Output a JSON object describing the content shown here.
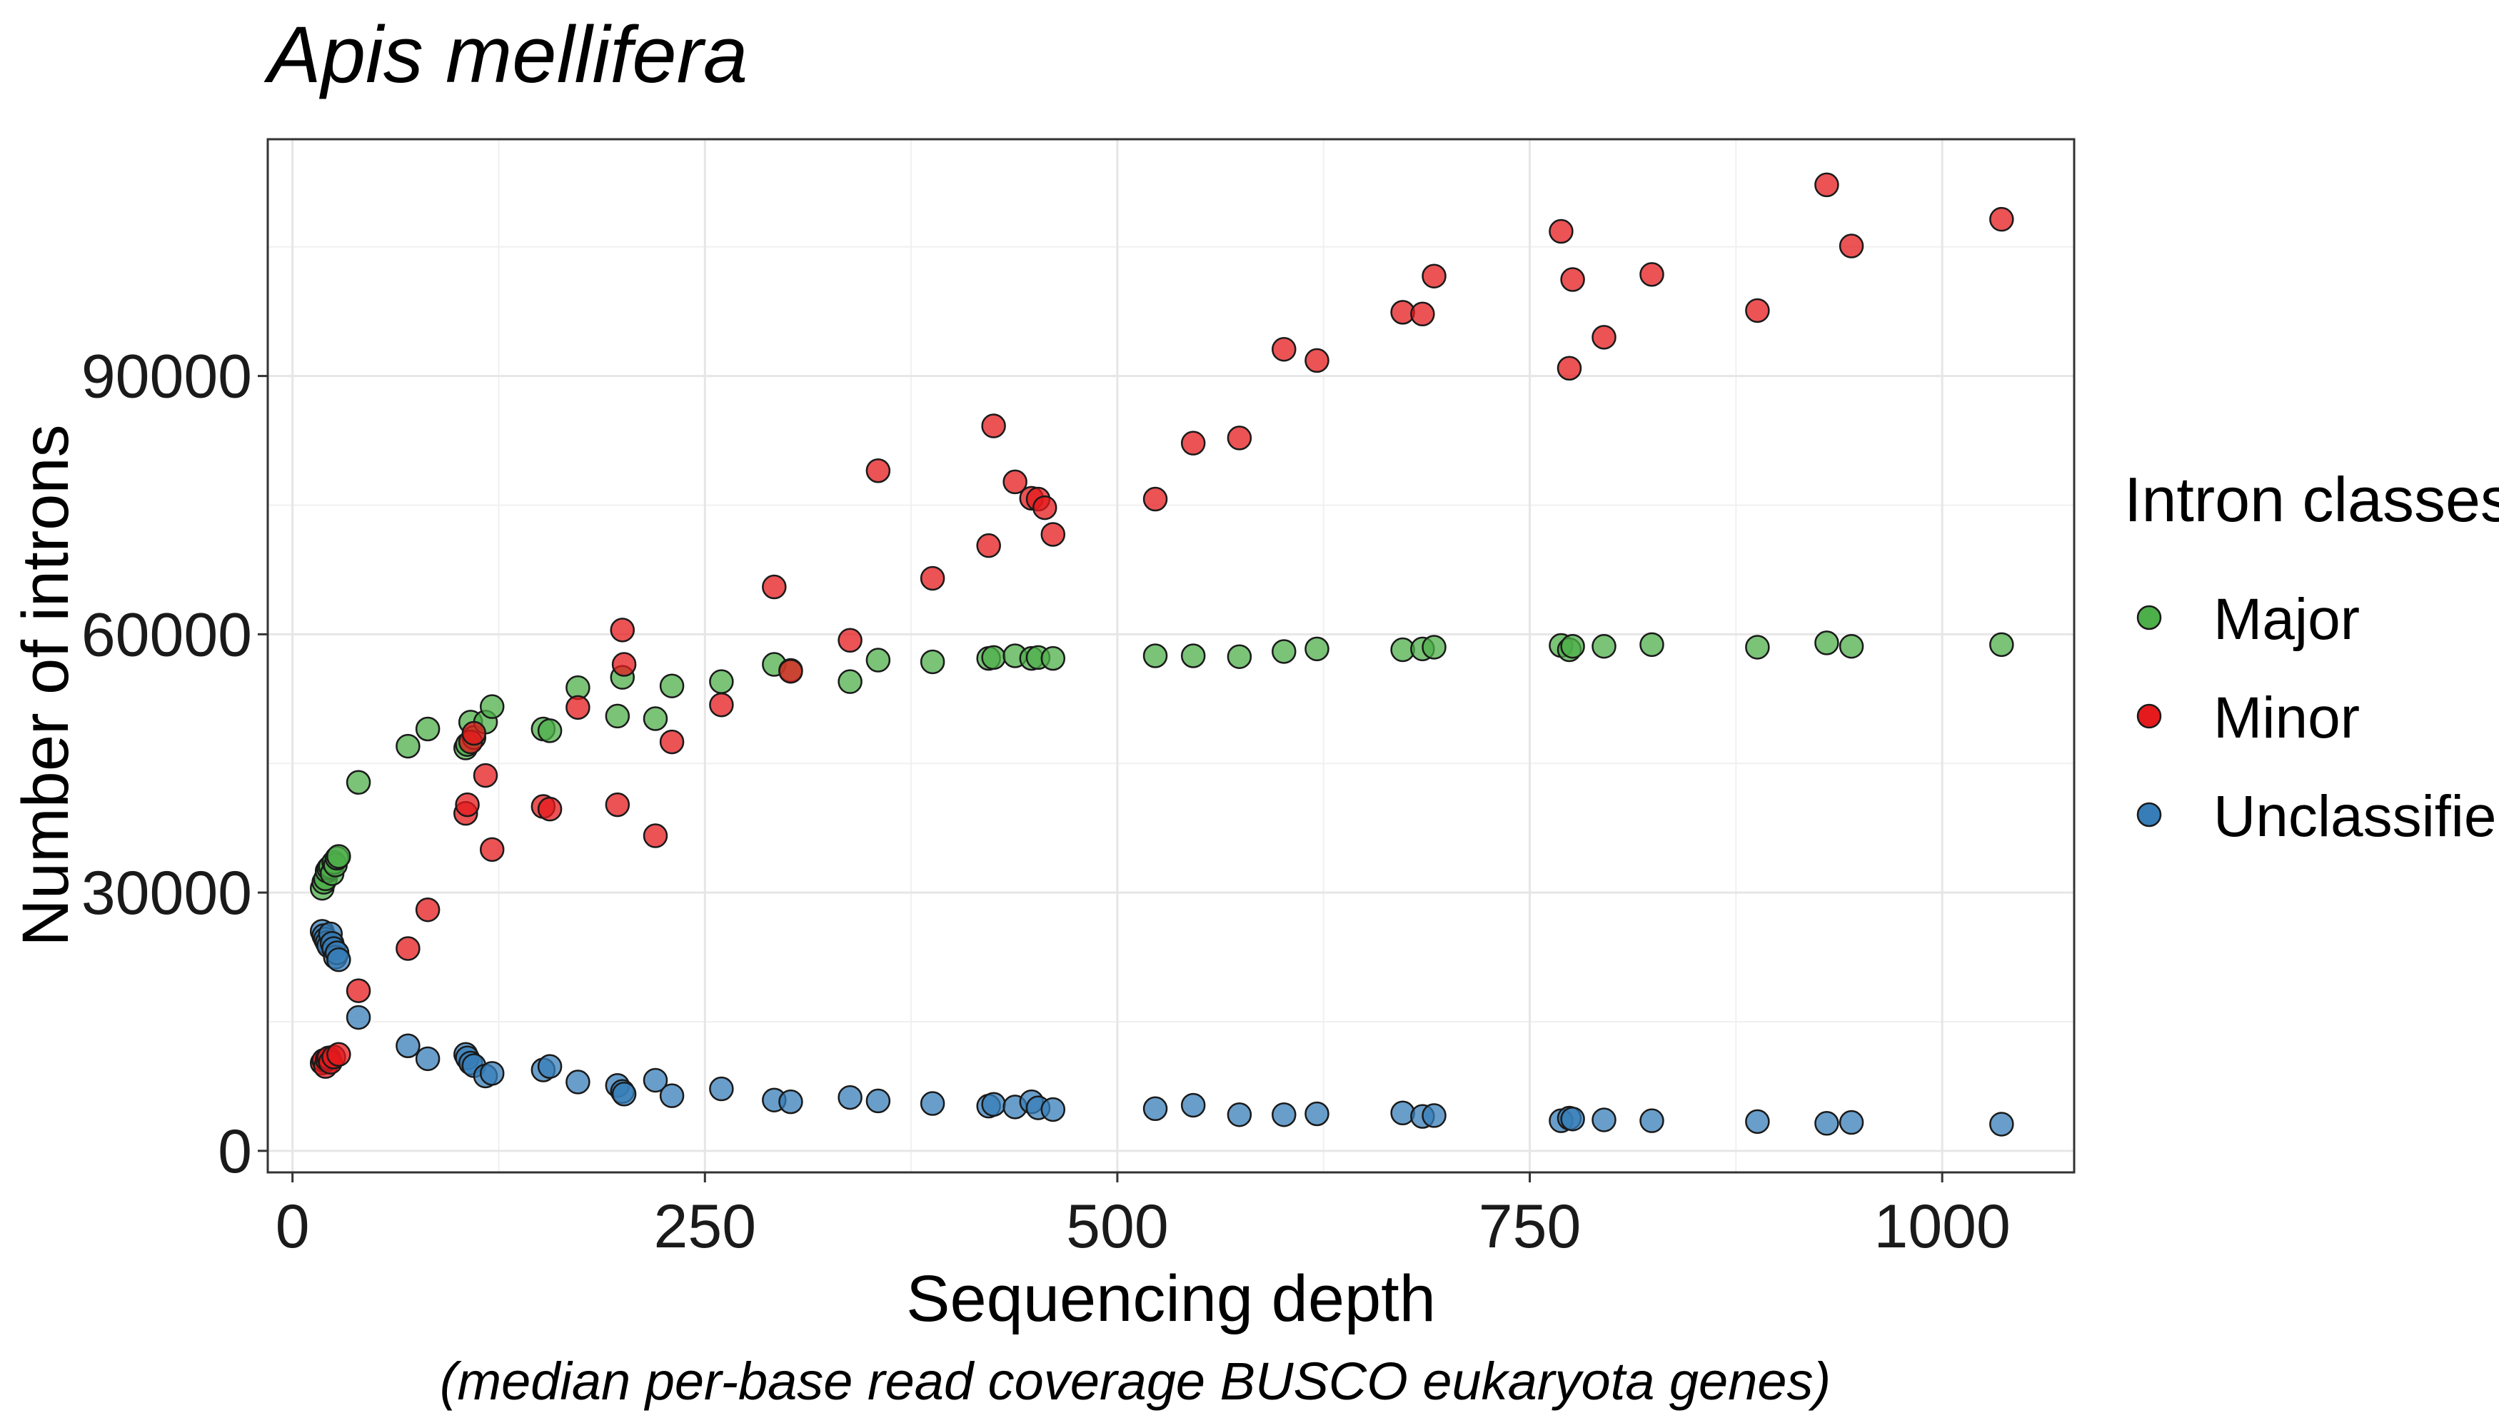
{
  "chart_data": {
    "type": "scatter",
    "title": "Apis mellifera",
    "xlabel": "Sequencing depth",
    "xlabel_note": "(median per-base read coverage BUSCO eukaryota genes)",
    "ylabel": "Number of introns",
    "xlim": [
      -15,
      1080
    ],
    "ylim": [
      -2500,
      117500
    ],
    "x_ticks": [
      0,
      250,
      500,
      750,
      1000
    ],
    "y_ticks": [
      0,
      30000,
      60000,
      90000
    ],
    "grid": true,
    "legend": {
      "title": "Intron classes",
      "position": "right"
    },
    "series": [
      {
        "name": "Major",
        "color": "#4DAF4A",
        "points": [
          [
            18,
            30500
          ],
          [
            19,
            31200
          ],
          [
            20,
            31600
          ],
          [
            21,
            32500
          ],
          [
            22,
            32800
          ],
          [
            23,
            33000
          ],
          [
            24,
            32200
          ],
          [
            25,
            33500
          ],
          [
            26,
            33200
          ],
          [
            27,
            34000
          ],
          [
            28,
            34200
          ],
          [
            40,
            42800
          ],
          [
            70,
            47000
          ],
          [
            82,
            49000
          ],
          [
            105,
            46800
          ],
          [
            106,
            47200
          ],
          [
            108,
            49800
          ],
          [
            110,
            48000
          ],
          [
            117,
            49800
          ],
          [
            121,
            51600
          ],
          [
            152,
            49000
          ],
          [
            156,
            48800
          ],
          [
            173,
            53800
          ],
          [
            197,
            50500
          ],
          [
            200,
            55000
          ],
          [
            220,
            50200
          ],
          [
            230,
            54000
          ],
          [
            260,
            54500
          ],
          [
            292,
            56500
          ],
          [
            302,
            55800
          ],
          [
            338,
            54500
          ],
          [
            355,
            57000
          ],
          [
            388,
            56800
          ],
          [
            422,
            57200
          ],
          [
            425,
            57300
          ],
          [
            438,
            57500
          ],
          [
            448,
            57200
          ],
          [
            452,
            57300
          ],
          [
            461,
            57200
          ],
          [
            523,
            57500
          ],
          [
            546,
            57500
          ],
          [
            574,
            57400
          ],
          [
            601,
            58000
          ],
          [
            621,
            58300
          ],
          [
            673,
            58200
          ],
          [
            685,
            58300
          ],
          [
            692,
            58500
          ],
          [
            769,
            58700
          ],
          [
            774,
            58200
          ],
          [
            776,
            58600
          ],
          [
            795,
            58600
          ],
          [
            824,
            58800
          ],
          [
            888,
            58500
          ],
          [
            930,
            59000
          ],
          [
            945,
            58600
          ],
          [
            1036,
            58800
          ]
        ]
      },
      {
        "name": "Minor",
        "color": "#E41A1C",
        "points": [
          [
            18,
            10200
          ],
          [
            19,
            10500
          ],
          [
            20,
            9800
          ],
          [
            21,
            10600
          ],
          [
            22,
            10800
          ],
          [
            23,
            10300
          ],
          [
            25,
            10900
          ],
          [
            28,
            11200
          ],
          [
            40,
            18600
          ],
          [
            70,
            23500
          ],
          [
            82,
            28000
          ],
          [
            105,
            39200
          ],
          [
            106,
            40200
          ],
          [
            108,
            47500
          ],
          [
            110,
            48500
          ],
          [
            117,
            43600
          ],
          [
            121,
            35000
          ],
          [
            152,
            40000
          ],
          [
            156,
            39700
          ],
          [
            173,
            51500
          ],
          [
            197,
            40200
          ],
          [
            200,
            60500
          ],
          [
            201,
            56500
          ],
          [
            220,
            36600
          ],
          [
            230,
            47500
          ],
          [
            260,
            51800
          ],
          [
            292,
            65500
          ],
          [
            302,
            55700
          ],
          [
            338,
            59300
          ],
          [
            355,
            79000
          ],
          [
            388,
            66500
          ],
          [
            422,
            70300
          ],
          [
            425,
            84200
          ],
          [
            438,
            77700
          ],
          [
            448,
            75800
          ],
          [
            452,
            75700
          ],
          [
            456,
            74700
          ],
          [
            461,
            71600
          ],
          [
            523,
            75700
          ],
          [
            546,
            82200
          ],
          [
            574,
            82800
          ],
          [
            601,
            93100
          ],
          [
            621,
            91800
          ],
          [
            673,
            97400
          ],
          [
            685,
            97200
          ],
          [
            692,
            101600
          ],
          [
            769,
            106800
          ],
          [
            774,
            90900
          ],
          [
            776,
            101200
          ],
          [
            795,
            94500
          ],
          [
            824,
            101800
          ],
          [
            888,
            97600
          ],
          [
            930,
            112200
          ],
          [
            945,
            105100
          ],
          [
            1036,
            108200
          ]
        ]
      },
      {
        "name": "Unclassified",
        "color": "#377EB8",
        "points": [
          [
            18,
            25500
          ],
          [
            19,
            25000
          ],
          [
            20,
            24600
          ],
          [
            21,
            24200
          ],
          [
            22,
            23800
          ],
          [
            23,
            25200
          ],
          [
            24,
            24100
          ],
          [
            25,
            23500
          ],
          [
            26,
            22500
          ],
          [
            27,
            23000
          ],
          [
            28,
            22200
          ],
          [
            40,
            15500
          ],
          [
            70,
            12200
          ],
          [
            82,
            10700
          ],
          [
            105,
            11200
          ],
          [
            106,
            10800
          ],
          [
            108,
            10200
          ],
          [
            110,
            9900
          ],
          [
            117,
            8700
          ],
          [
            121,
            9000
          ],
          [
            152,
            9400
          ],
          [
            156,
            9800
          ],
          [
            173,
            8000
          ],
          [
            197,
            7600
          ],
          [
            200,
            6900
          ],
          [
            201,
            6600
          ],
          [
            220,
            8200
          ],
          [
            230,
            6400
          ],
          [
            260,
            7200
          ],
          [
            292,
            5900
          ],
          [
            302,
            5700
          ],
          [
            338,
            6200
          ],
          [
            355,
            5800
          ],
          [
            388,
            5500
          ],
          [
            422,
            5200
          ],
          [
            425,
            5400
          ],
          [
            438,
            5100
          ],
          [
            448,
            5700
          ],
          [
            452,
            5000
          ],
          [
            461,
            4800
          ],
          [
            523,
            4900
          ],
          [
            546,
            5300
          ],
          [
            574,
            4200
          ],
          [
            601,
            4200
          ],
          [
            621,
            4300
          ],
          [
            673,
            4400
          ],
          [
            685,
            4000
          ],
          [
            692,
            4100
          ],
          [
            769,
            3500
          ],
          [
            774,
            3800
          ],
          [
            776,
            3700
          ],
          [
            795,
            3600
          ],
          [
            824,
            3500
          ],
          [
            888,
            3400
          ],
          [
            930,
            3200
          ],
          [
            945,
            3300
          ],
          [
            1036,
            3100
          ]
        ]
      }
    ]
  }
}
